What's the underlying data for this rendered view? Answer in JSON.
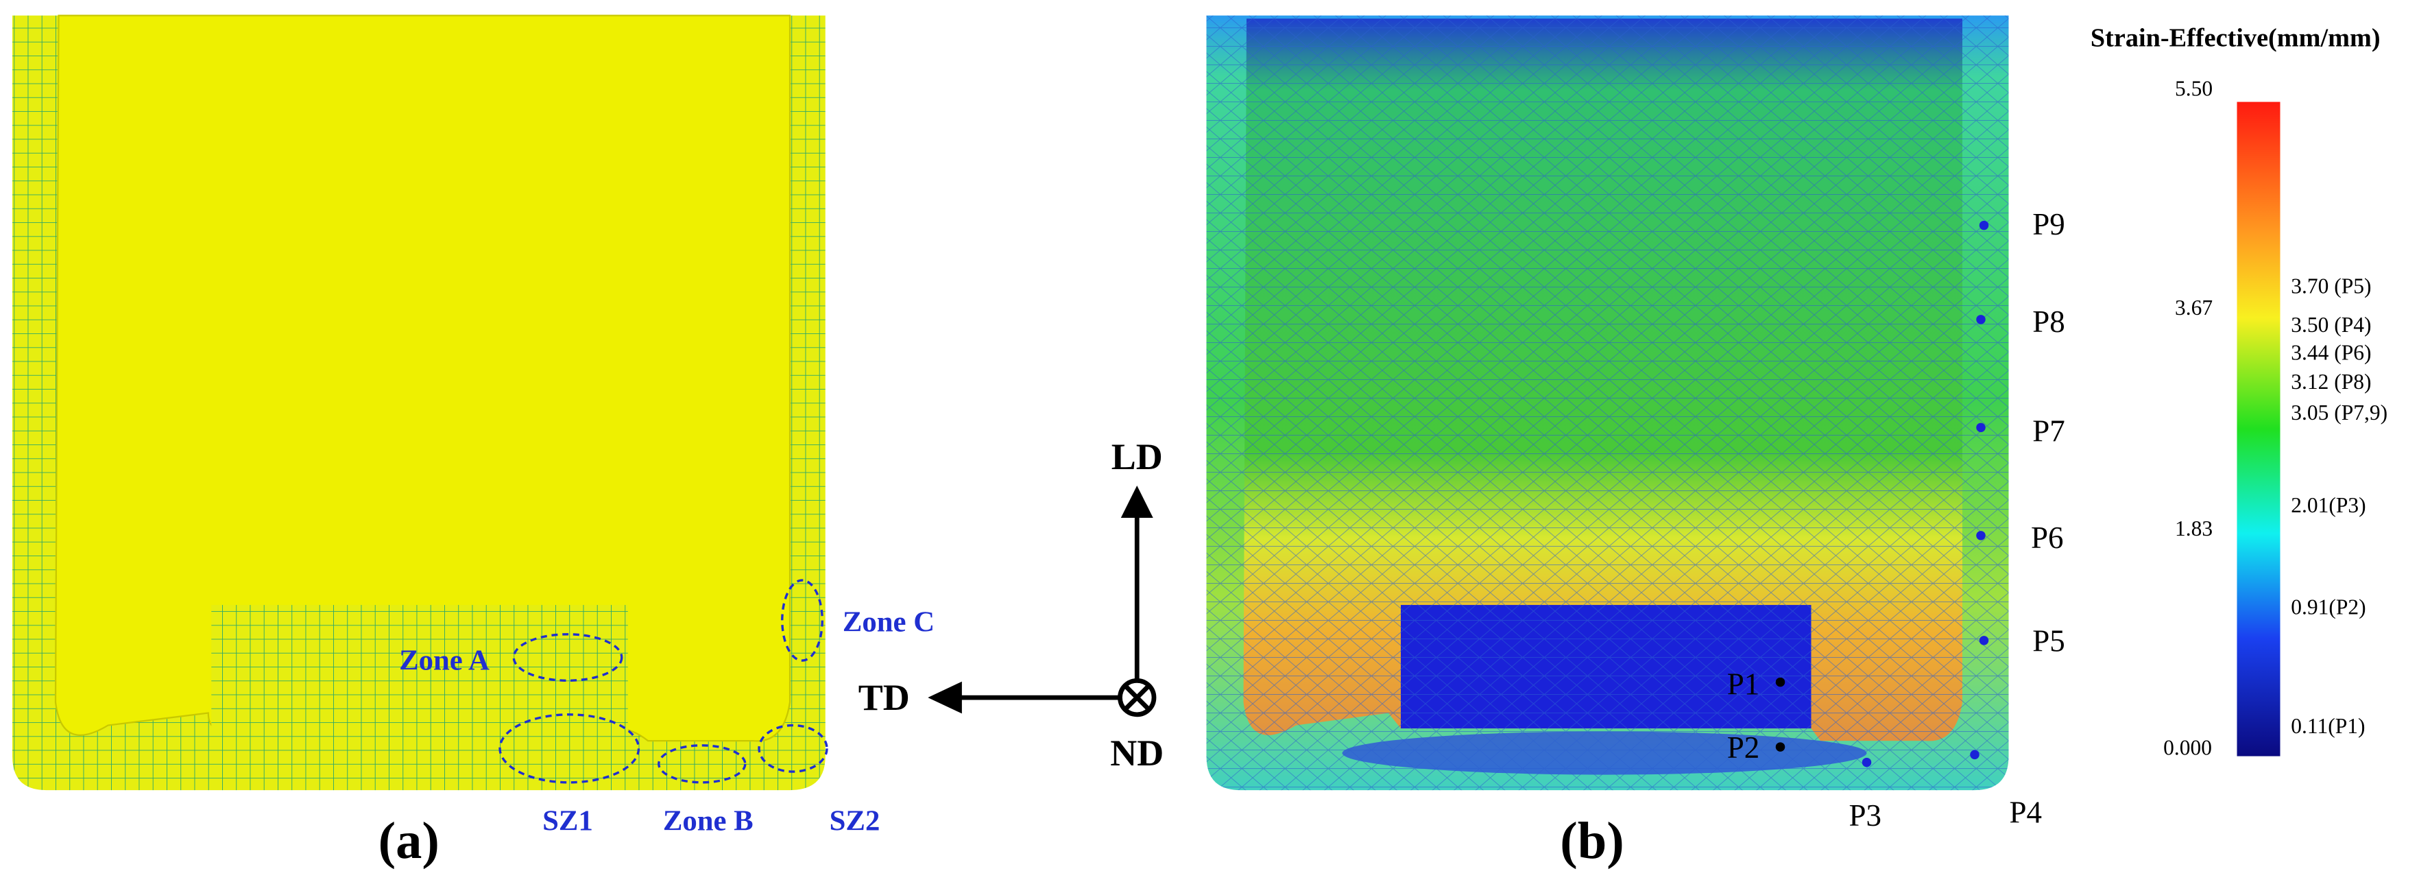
{
  "panel_a": {
    "label": "(a)",
    "zones": [
      "Zone A",
      "Zone C",
      "SZ1",
      "Zone B",
      "SZ2"
    ]
  },
  "axes": {
    "up": "LD",
    "left": "TD",
    "normal": "ND"
  },
  "panel_b": {
    "label": "(b)",
    "points": [
      "P1",
      "P2",
      "P3",
      "P4",
      "P5",
      "P6",
      "P7",
      "P8",
      "P9"
    ]
  },
  "colorbar": {
    "title": "Strain-Effective(mm/mm)",
    "ticks": [
      "5.50",
      "3.67",
      "1.83",
      "0.000"
    ],
    "annotations": [
      "3.70 (P5)",
      "3.50 (P4)",
      "3.44 (P6)",
      "3.12 (P8)",
      "3.05 (P7,9)",
      "2.01(P3)",
      "0.91(P2)",
      "0.11(P1)"
    ]
  }
}
